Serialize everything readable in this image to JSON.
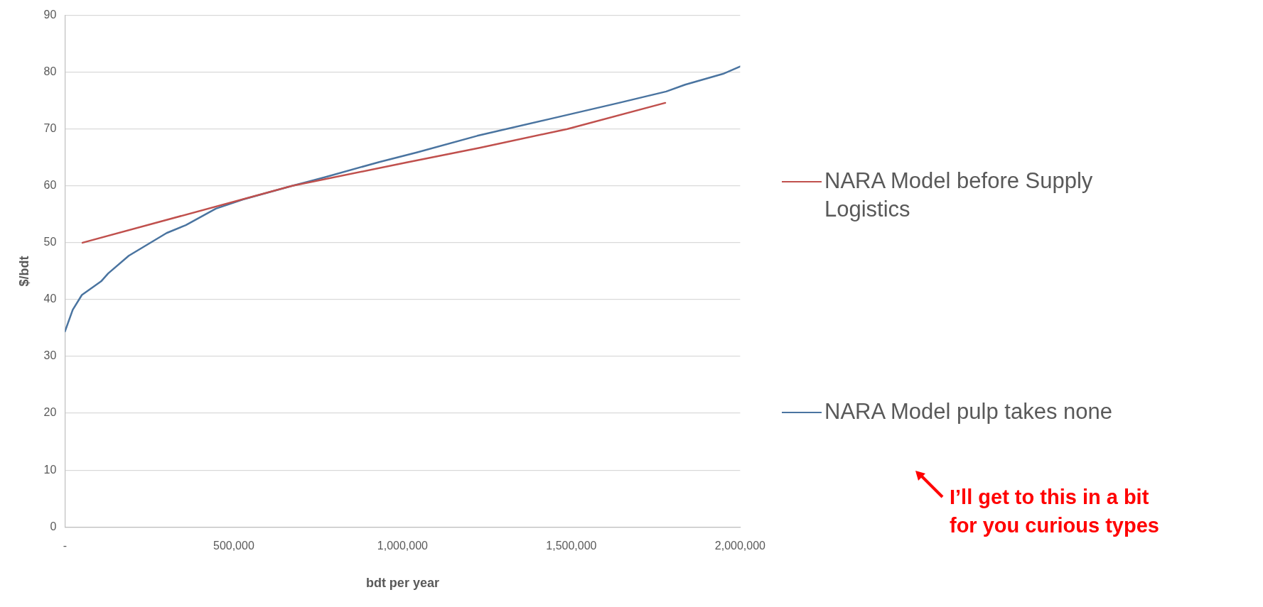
{
  "chart_data": {
    "type": "line",
    "xlabel": "bdt per year",
    "ylabel": "$/bdt",
    "xlim": [
      0,
      2000000
    ],
    "ylim": [
      0,
      90
    ],
    "xticks": [
      {
        "value": 0,
        "label": "-"
      },
      {
        "value": 500000,
        "label": "500,000"
      },
      {
        "value": 1000000,
        "label": "1,000,000"
      },
      {
        "value": 1500000,
        "label": "1,500,000"
      },
      {
        "value": 2000000,
        "label": "2,000,000"
      }
    ],
    "yticks": [
      0,
      10,
      20,
      30,
      40,
      50,
      60,
      70,
      80,
      90
    ],
    "grid": "y",
    "legend": "right",
    "marker": "none",
    "line_style": "solid",
    "series": [
      {
        "name": "NARA Model before Supply Logistics",
        "color": "#c0504d",
        "x": [
          52000,
          673000,
          1010000,
          1228000,
          1488000,
          1778000
        ],
        "values": [
          50,
          60,
          64.1,
          66.7,
          70,
          74.6
        ]
      },
      {
        "name": "NARA Model pulp takes none",
        "color": "#4a74a0",
        "x": [
          0,
          23000,
          50000,
          107000,
          128000,
          189000,
          301000,
          358000,
          447000,
          527000,
          673000,
          769000,
          931000,
          1044000,
          1221000,
          1431000,
          1641000,
          1781000,
          1837000,
          1949000,
          2000000
        ],
        "values": [
          34.4,
          38.2,
          40.8,
          43.2,
          44.6,
          47.7,
          51.7,
          53.1,
          56,
          57.6,
          60,
          61.5,
          64.2,
          65.9,
          68.8,
          71.7,
          74.6,
          76.6,
          77.8,
          79.7,
          81
        ]
      }
    ],
    "annotations": [
      "I’ll get to this in a bit\nfor you curious types"
    ]
  }
}
